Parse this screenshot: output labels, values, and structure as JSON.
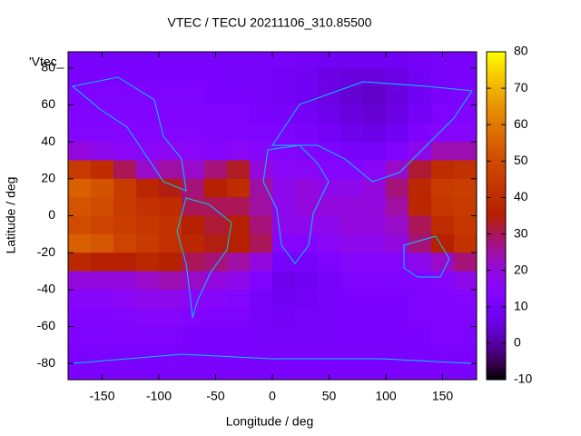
{
  "chart_data": {
    "type": "heatmap",
    "title": "VTEC / TECU 20211106_310.85500",
    "key_label": "'Vtec_",
    "xlabel": "Longitude / deg",
    "ylabel": "Latitude / deg",
    "xlim": [
      -180,
      180
    ],
    "ylim": [
      -88.75,
      88.75
    ],
    "xticks": [
      -150,
      -100,
      -50,
      0,
      50,
      100,
      150
    ],
    "yticks": [
      -80,
      -60,
      -40,
      -20,
      0,
      20,
      40,
      60,
      80
    ],
    "cblim": [
      -10,
      80
    ],
    "cbticks": [
      -10,
      0,
      10,
      20,
      30,
      40,
      50,
      60,
      70,
      80
    ],
    "x": [
      -170,
      -150,
      -130,
      -110,
      -90,
      -70,
      -50,
      -30,
      -10,
      10,
      30,
      50,
      70,
      90,
      110,
      130,
      150,
      170
    ],
    "y": [
      85,
      75,
      65,
      55,
      45,
      35,
      25,
      15,
      5,
      -5,
      -15,
      -25,
      -35,
      -45,
      -55,
      -65,
      -75,
      -85
    ],
    "z": [
      [
        10,
        10,
        10,
        10,
        10,
        10,
        10,
        10,
        10,
        10,
        9,
        8,
        8,
        8,
        8,
        9,
        10,
        10
      ],
      [
        11,
        11,
        11,
        11,
        11,
        11,
        11,
        10,
        10,
        9,
        8,
        6,
        5,
        5,
        6,
        8,
        10,
        11
      ],
      [
        12,
        12,
        12,
        12,
        12,
        12,
        11,
        11,
        10,
        9,
        8,
        6,
        4,
        3,
        5,
        8,
        11,
        12
      ],
      [
        13,
        13,
        13,
        13,
        13,
        13,
        12,
        12,
        11,
        10,
        9,
        7,
        5,
        4,
        6,
        9,
        12,
        13
      ],
      [
        14,
        14,
        14,
        14,
        14,
        14,
        13,
        13,
        12,
        12,
        11,
        9,
        7,
        6,
        8,
        12,
        15,
        15
      ],
      [
        20,
        18,
        16,
        16,
        17,
        16,
        15,
        16,
        15,
        14,
        13,
        12,
        10,
        10,
        13,
        18,
        24,
        24
      ],
      [
        45,
        40,
        30,
        22,
        25,
        22,
        28,
        33,
        20,
        16,
        16,
        15,
        14,
        16,
        22,
        32,
        40,
        42
      ],
      [
        55,
        52,
        45,
        38,
        34,
        28,
        35,
        40,
        25,
        18,
        20,
        18,
        18,
        20,
        28,
        38,
        45,
        46
      ],
      [
        52,
        50,
        45,
        42,
        40,
        30,
        30,
        30,
        25,
        18,
        20,
        20,
        20,
        20,
        25,
        38,
        44,
        45
      ],
      [
        50,
        48,
        46,
        44,
        42,
        35,
        32,
        35,
        28,
        18,
        18,
        18,
        20,
        20,
        22,
        30,
        40,
        44
      ],
      [
        55,
        53,
        48,
        45,
        42,
        38,
        34,
        35,
        30,
        15,
        14,
        16,
        18,
        18,
        20,
        28,
        36,
        42
      ],
      [
        38,
        35,
        35,
        38,
        36,
        30,
        28,
        25,
        20,
        10,
        10,
        12,
        15,
        15,
        15,
        18,
        22,
        28
      ],
      [
        20,
        20,
        20,
        22,
        24,
        22,
        20,
        18,
        12,
        7,
        8,
        10,
        12,
        12,
        12,
        13,
        15,
        18
      ],
      [
        15,
        15,
        16,
        18,
        18,
        16,
        15,
        14,
        10,
        8,
        9,
        10,
        11,
        11,
        11,
        12,
        13,
        14
      ],
      [
        13,
        13,
        14,
        15,
        15,
        13,
        12,
        12,
        10,
        9,
        10,
        10,
        11,
        11,
        11,
        12,
        12,
        13
      ],
      [
        12,
        12,
        12,
        12,
        12,
        11,
        11,
        11,
        10,
        10,
        10,
        10,
        11,
        11,
        11,
        11,
        12,
        12
      ],
      [
        11,
        11,
        11,
        11,
        11,
        11,
        11,
        11,
        11,
        11,
        11,
        11,
        11,
        11,
        11,
        11,
        11,
        11
      ],
      [
        11,
        11,
        11,
        11,
        11,
        11,
        11,
        11,
        11,
        11,
        11,
        11,
        11,
        11,
        11,
        11,
        11,
        11
      ]
    ]
  }
}
